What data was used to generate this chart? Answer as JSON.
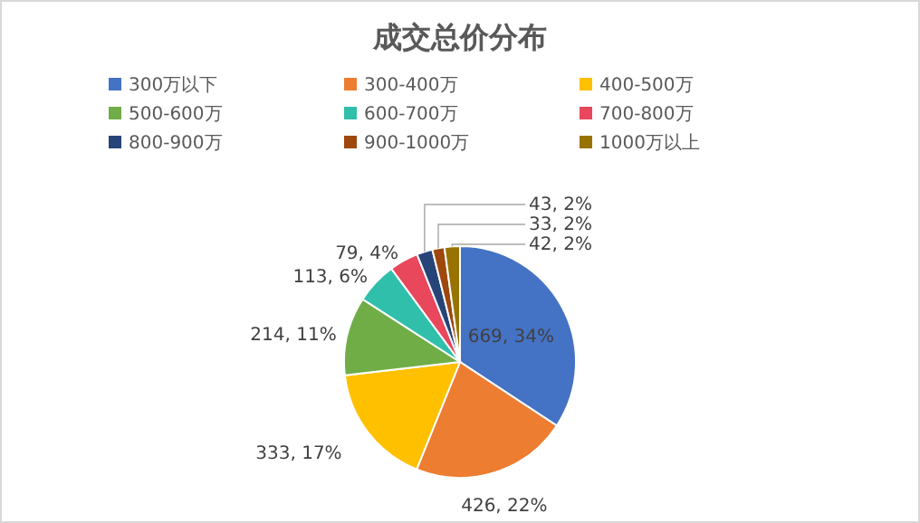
{
  "chart_data": {
    "type": "pie",
    "title": "成交总价分布",
    "categories": [
      "300万以下",
      "300-400万",
      "400-500万",
      "500-600万",
      "600-700万",
      "700-800万",
      "800-900万",
      "900-1000万",
      "1000万以上"
    ],
    "values": [
      669,
      426,
      333,
      214,
      113,
      79,
      43,
      33,
      42
    ],
    "value_labels": [
      "669, 34%",
      "426, 22%",
      "333, 17%",
      "214, 11%",
      "113, 6%",
      "79, 4%",
      "43, 2%",
      "33, 2%",
      "42, 2%"
    ],
    "colors": [
      "#4472c4",
      "#ed7d31",
      "#ffc000",
      "#70ad47",
      "#2fbfaa",
      "#e8475c",
      "#264478",
      "#9e480e",
      "#997300"
    ],
    "legend": "top"
  }
}
